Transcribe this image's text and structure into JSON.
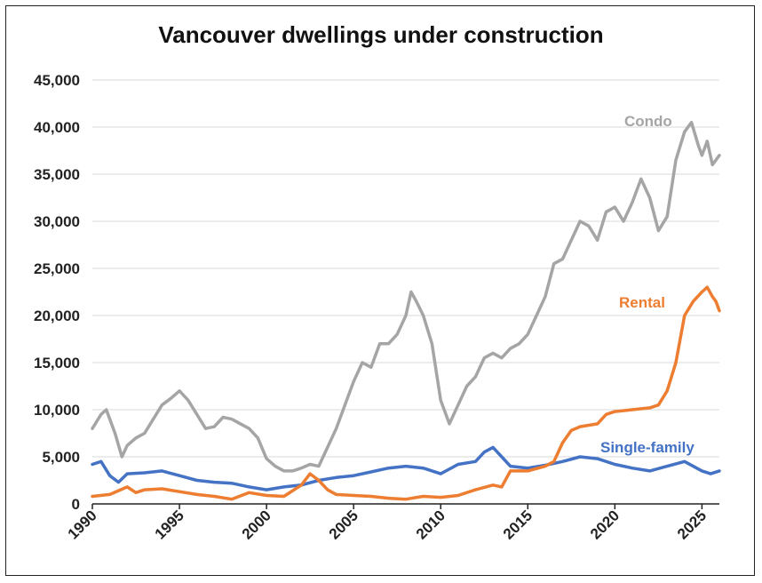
{
  "chart_data": {
    "type": "line",
    "title": "Vancouver dwellings under construction",
    "xlabel": "",
    "ylabel": "",
    "xlim": [
      1990,
      2026
    ],
    "ylim": [
      0,
      45000
    ],
    "y_ticks": [
      0,
      5000,
      10000,
      15000,
      20000,
      25000,
      30000,
      35000,
      40000,
      45000
    ],
    "y_tick_labels": [
      "0",
      "5,000",
      "10,000",
      "15,000",
      "20,000",
      "25,000",
      "30,000",
      "35,000",
      "40,000",
      "45,000"
    ],
    "x_ticks": [
      1990,
      1995,
      2000,
      2005,
      2010,
      2015,
      2020,
      2025
    ],
    "x_tick_labels": [
      "1990",
      "1995",
      "2000",
      "2005",
      "2010",
      "2015",
      "2020",
      "2025"
    ],
    "grid": "horizontal",
    "series": [
      {
        "name": "Condo",
        "label": "Condo",
        "color": "#a5a5a5",
        "x": [
          1990.0,
          1990.5,
          1990.8,
          1991.3,
          1991.7,
          1992.0,
          1992.5,
          1993.0,
          1993.5,
          1994.0,
          1994.5,
          1995.0,
          1995.5,
          1996.0,
          1996.5,
          1997.0,
          1997.5,
          1998.0,
          1998.5,
          1999.0,
          1999.5,
          2000.0,
          2000.5,
          2001.0,
          2001.5,
          2002.0,
          2002.5,
          2003.0,
          2003.5,
          2004.0,
          2004.5,
          2005.0,
          2005.5,
          2006.0,
          2006.5,
          2007.0,
          2007.5,
          2008.0,
          2008.3,
          2008.6,
          2009.0,
          2009.5,
          2010.0,
          2010.5,
          2011.0,
          2011.5,
          2012.0,
          2012.5,
          2013.0,
          2013.5,
          2014.0,
          2014.5,
          2015.0,
          2015.5,
          2016.0,
          2016.5,
          2017.0,
          2017.5,
          2018.0,
          2018.5,
          2019.0,
          2019.5,
          2020.0,
          2020.5,
          2021.0,
          2021.5,
          2022.0,
          2022.5,
          2023.0,
          2023.5,
          2024.0,
          2024.4,
          2024.8,
          2025.0,
          2025.3,
          2025.6,
          2025.8,
          2026.0
        ],
        "values": [
          8000,
          9500,
          10000,
          7500,
          5000,
          6200,
          7000,
          7500,
          9000,
          10500,
          11200,
          12000,
          11000,
          9500,
          8000,
          8200,
          9200,
          9000,
          8500,
          8000,
          7000,
          4800,
          4000,
          3500,
          3500,
          3800,
          4200,
          4000,
          6000,
          8000,
          10500,
          13000,
          15000,
          14500,
          17000,
          17000,
          18000,
          20000,
          22500,
          21500,
          20000,
          17000,
          11000,
          8500,
          10500,
          12500,
          13500,
          15500,
          16000,
          15500,
          16500,
          17000,
          18000,
          20000,
          22000,
          25500,
          26000,
          28000,
          30000,
          29500,
          28000,
          31000,
          31500,
          30000,
          32000,
          34500,
          32500,
          29000,
          30500,
          36500,
          39500,
          40500,
          38000,
          37000,
          38500,
          36000,
          36500,
          37000
        ]
      },
      {
        "name": "Rental",
        "label": "Rental",
        "color": "#ed7d31",
        "x": [
          1990.0,
          1991.0,
          1992.0,
          1992.5,
          1993.0,
          1994.0,
          1995.0,
          1996.0,
          1997.0,
          1998.0,
          1999.0,
          2000.0,
          2001.0,
          2002.0,
          2002.5,
          2003.0,
          2003.5,
          2004.0,
          2005.0,
          2006.0,
          2007.0,
          2008.0,
          2009.0,
          2010.0,
          2011.0,
          2012.0,
          2013.0,
          2013.5,
          2014.0,
          2015.0,
          2016.0,
          2016.5,
          2017.0,
          2017.5,
          2018.0,
          2019.0,
          2019.5,
          2020.0,
          2021.0,
          2022.0,
          2022.5,
          2023.0,
          2023.5,
          2024.0,
          2024.5,
          2025.0,
          2025.3,
          2025.6,
          2025.8,
          2026.0
        ],
        "values": [
          800,
          1000,
          1800,
          1200,
          1500,
          1600,
          1300,
          1000,
          800,
          500,
          1200,
          900,
          800,
          2000,
          3200,
          2500,
          1500,
          1000,
          900,
          800,
          600,
          500,
          800,
          700,
          900,
          1500,
          2000,
          1800,
          3500,
          3500,
          4000,
          4500,
          6500,
          7800,
          8200,
          8500,
          9500,
          9800,
          10000,
          10200,
          10500,
          12000,
          15000,
          20000,
          21500,
          22500,
          23000,
          22000,
          21500,
          20500
        ]
      },
      {
        "name": "Single-family",
        "label": "Single-family",
        "color": "#4472c4",
        "x": [
          1990.0,
          1990.5,
          1991.0,
          1991.5,
          1992.0,
          1993.0,
          1994.0,
          1995.0,
          1996.0,
          1997.0,
          1998.0,
          1999.0,
          2000.0,
          2001.0,
          2002.0,
          2003.0,
          2004.0,
          2005.0,
          2006.0,
          2007.0,
          2008.0,
          2009.0,
          2010.0,
          2011.0,
          2012.0,
          2012.5,
          2013.0,
          2013.5,
          2014.0,
          2015.0,
          2016.0,
          2017.0,
          2018.0,
          2019.0,
          2020.0,
          2021.0,
          2022.0,
          2023.0,
          2024.0,
          2025.0,
          2025.5,
          2026.0
        ],
        "values": [
          4200,
          4500,
          3000,
          2300,
          3200,
          3300,
          3500,
          3000,
          2500,
          2300,
          2200,
          1800,
          1500,
          1800,
          2000,
          2500,
          2800,
          3000,
          3400,
          3800,
          4000,
          3800,
          3200,
          4200,
          4500,
          5500,
          6000,
          5000,
          4000,
          3800,
          4100,
          4500,
          5000,
          4800,
          4200,
          3800,
          3500,
          4000,
          4500,
          3500,
          3200,
          3500
        ]
      }
    ]
  }
}
